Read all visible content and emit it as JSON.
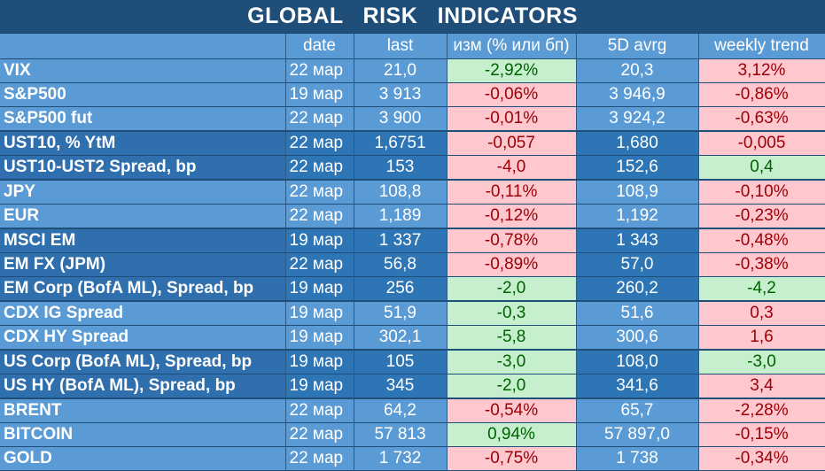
{
  "title": "GLOBAL   RISK   INDICATORS",
  "columns": [
    "",
    "date",
    "last",
    "изм (% или бп)",
    "5D avrg",
    "weekly trend"
  ],
  "rows": [
    {
      "name": "VIX",
      "date": "22 мар",
      "last": "21,0",
      "change": "-2,92%",
      "avg5d": "20,3",
      "weekly": "3,12%",
      "group": "light",
      "change_tone": "pos",
      "weekly_tone": "neg"
    },
    {
      "name": "S&P500",
      "date": "19 мар",
      "last": "3 913",
      "change": "-0,06%",
      "avg5d": "3 946,9",
      "weekly": "-0,86%",
      "group": "light",
      "change_tone": "neg",
      "weekly_tone": "neg"
    },
    {
      "name": "S&P500 fut",
      "date": "22 мар",
      "last": "3 900",
      "change": "-0,01%",
      "avg5d": "3 924,2",
      "weekly": "-0,63%",
      "group": "light",
      "change_tone": "neg",
      "weekly_tone": "neg",
      "end": true
    },
    {
      "name": "UST10, % YtM",
      "date": "22 мар",
      "last": "1,6751",
      "change": "-0,057",
      "avg5d": "1,680",
      "weekly": "-0,005",
      "group": "dark",
      "change_tone": "neg",
      "weekly_tone": "neg"
    },
    {
      "name": "UST10-UST2 Spread, bp",
      "date": "22 мар",
      "last": "153",
      "change": "-4,0",
      "avg5d": "152,6",
      "weekly": "0,4",
      "group": "dark",
      "change_tone": "neg",
      "weekly_tone": "pos",
      "end": true
    },
    {
      "name": "JPY",
      "date": "22 мар",
      "last": "108,8",
      "change": "-0,11%",
      "avg5d": "108,9",
      "weekly": "-0,10%",
      "group": "light",
      "change_tone": "neg",
      "weekly_tone": "neg"
    },
    {
      "name": "EUR",
      "date": "22 мар",
      "last": "1,189",
      "change": "-0,12%",
      "avg5d": "1,192",
      "weekly": "-0,23%",
      "group": "light",
      "change_tone": "neg",
      "weekly_tone": "neg",
      "end": true
    },
    {
      "name": "MSCI EM",
      "date": "19 мар",
      "last": "1 337",
      "change": "-0,78%",
      "avg5d": "1 343",
      "weekly": "-0,48%",
      "group": "dark",
      "change_tone": "neg",
      "weekly_tone": "neg"
    },
    {
      "name": "EM FX (JPM)",
      "date": "22 мар",
      "last": "56,8",
      "change": "-0,89%",
      "avg5d": "57,0",
      "weekly": "-0,38%",
      "group": "dark",
      "change_tone": "neg",
      "weekly_tone": "neg"
    },
    {
      "name": "EM Corp (BofA ML), Spread, bp",
      "date": "19 мар",
      "last": "256",
      "change": "-2,0",
      "avg5d": "260,2",
      "weekly": "-4,2",
      "group": "dark",
      "change_tone": "pos",
      "weekly_tone": "pos",
      "end": true
    },
    {
      "name": "CDX IG Spread",
      "date": "19 мар",
      "last": "51,9",
      "change": "-0,3",
      "avg5d": "51,6",
      "weekly": "0,3",
      "group": "light",
      "change_tone": "pos",
      "weekly_tone": "neg"
    },
    {
      "name": "CDX HY Spread",
      "date": "19 мар",
      "last": "302,1",
      "change": "-5,8",
      "avg5d": "300,6",
      "weekly": "1,6",
      "group": "light",
      "change_tone": "pos",
      "weekly_tone": "neg",
      "end": true
    },
    {
      "name": "US Corp (BofA ML), Spread, bp",
      "date": "19 мар",
      "last": "105",
      "change": "-3,0",
      "avg5d": "108,0",
      "weekly": "-3,0",
      "group": "dark",
      "change_tone": "pos",
      "weekly_tone": "pos"
    },
    {
      "name": "US HY (BofA ML), Spread, bp",
      "date": "19 мар",
      "last": "345",
      "change": "-2,0",
      "avg5d": "341,6",
      "weekly": "3,4",
      "group": "dark",
      "change_tone": "pos",
      "weekly_tone": "neg",
      "end": true
    },
    {
      "name": "BRENT",
      "date": "22 мар",
      "last": "64,2",
      "change": "-0,54%",
      "avg5d": "65,7",
      "weekly": "-2,28%",
      "group": "light",
      "change_tone": "neg",
      "weekly_tone": "neg"
    },
    {
      "name": "BITCOIN",
      "date": "22 мар",
      "last": "57 813",
      "change": "0,94%",
      "avg5d": "57 897,0",
      "weekly": "-0,15%",
      "group": "light",
      "change_tone": "pos",
      "weekly_tone": "neg"
    },
    {
      "name": "GOLD",
      "date": "22 мар",
      "last": "1 732",
      "change": "-0,75%",
      "avg5d": "1 738",
      "weekly": "-0,34%",
      "group": "light",
      "change_tone": "neg",
      "weekly_tone": "neg"
    }
  ],
  "colors": {
    "header_bg": "#1f4e79",
    "light_row": "#5b9bd5",
    "dark_row": "#2e75b6",
    "neg_fill": "#ffc7ce",
    "neg_text": "#9c0006",
    "pos_fill": "#c6efce",
    "pos_text": "#006100"
  }
}
